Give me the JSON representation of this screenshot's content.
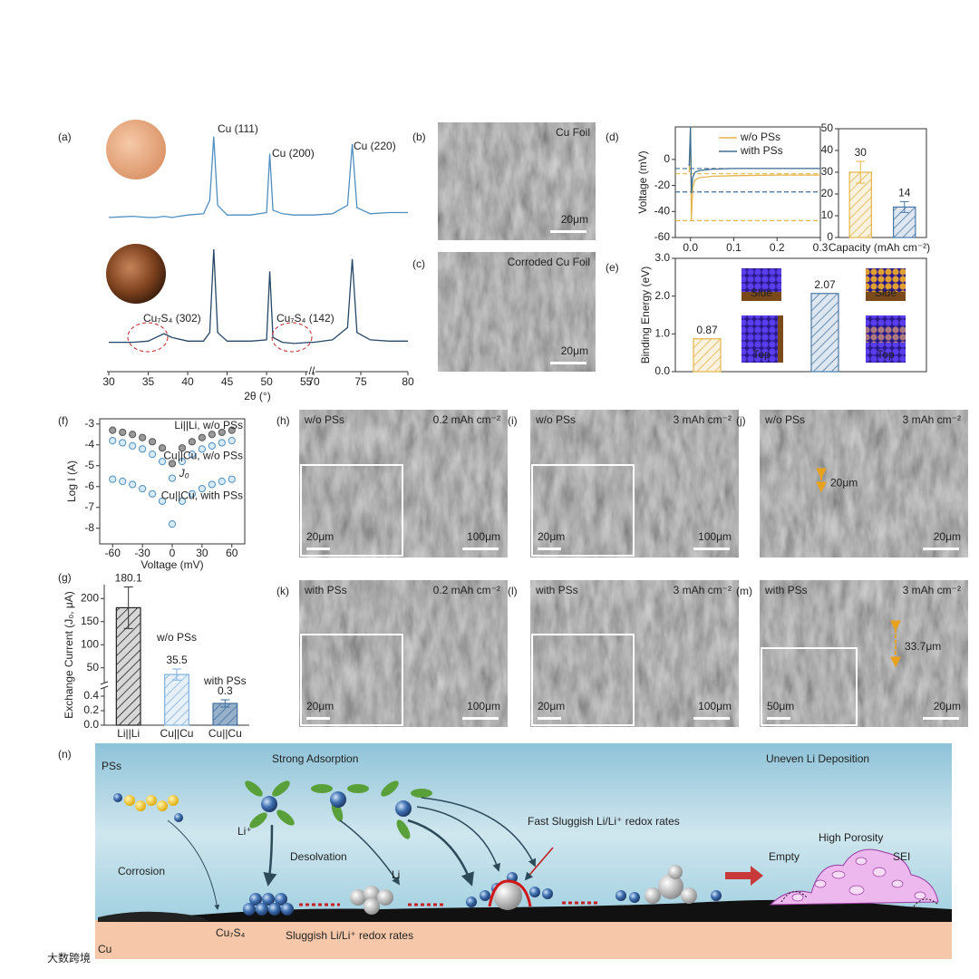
{
  "chart_data": [
    {
      "type": "line",
      "panel": "(a)",
      "xlabel": "2θ (°)",
      "xlim": [
        30,
        80
      ],
      "x_break": [
        55.5,
        70
      ],
      "xticks": [
        30,
        35,
        40,
        45,
        50,
        55,
        70,
        75,
        80
      ],
      "ylim": [
        0,
        100
      ],
      "x": [
        30,
        33,
        35,
        36,
        37,
        38,
        40,
        42,
        42.8,
        43.3,
        43.8,
        45,
        48,
        50,
        50.4,
        50.8,
        52,
        53.5,
        55.5,
        70,
        72,
        73.6,
        74.1,
        74.6,
        76,
        78,
        80
      ],
      "series": [
        {
          "color": "#4f8fc0",
          "values": [
            63,
            63.5,
            63,
            63,
            63.5,
            63,
            64,
            64.5,
            70,
            96,
            68,
            64,
            64,
            65,
            89,
            66,
            64.5,
            64,
            64,
            64,
            64.5,
            68,
            93,
            67,
            64.5,
            65,
            65
          ]
        },
        {
          "color": "#274766",
          "values": [
            12,
            12,
            12.5,
            14,
            15.5,
            14,
            12.5,
            12.5,
            16,
            50,
            16,
            12.5,
            12.5,
            13,
            41,
            14,
            12,
            11.5,
            12,
            12,
            13,
            18,
            46,
            16,
            13,
            12.5,
            12.5
          ]
        }
      ],
      "annotations": [
        "Cu (111)",
        "Cu (200)",
        "Cu (220)",
        "Cu₇S₄ (302)",
        "Cu₇S₄ (142)"
      ]
    },
    {
      "type": "line",
      "panel": "(d)",
      "xlabel": "Capacity (mAh cm⁻²)",
      "ylabel": "Voltage (mV)",
      "xlim": [
        -0.035,
        0.3
      ],
      "xticks": [
        {
          "value": 0,
          "label": "0.0"
        },
        0.1,
        0.2,
        0.3
      ],
      "ylim": [
        -60,
        25
      ],
      "yticks": [
        -60,
        -40,
        -20,
        0
      ],
      "legend": "upper right",
      "x": [
        -0.003,
        0,
        0.002,
        0.005,
        0.01,
        0.02,
        0.05,
        0.1,
        0.2,
        0.3
      ],
      "series": [
        {
          "name": "w/o PSs",
          "color": "#e3b54a",
          "values": [
            -10,
            25,
            -47,
            -22,
            -16,
            -14,
            -13,
            -12.5,
            -12,
            -12
          ]
        },
        {
          "name": "with PSs",
          "color": "#3f6f96",
          "values": [
            -5,
            25,
            -26,
            -14,
            -10,
            -8.5,
            -7.5,
            -7,
            -7,
            -7
          ]
        }
      ],
      "reference_lines": [
        {
          "value": -11,
          "color": "#e3b54a"
        },
        {
          "value": -47,
          "color": "#e3b54a"
        },
        {
          "value": -7,
          "color": "#3f6f96"
        },
        {
          "value": -25,
          "color": "#3f6f96"
        }
      ]
    },
    {
      "type": "bar",
      "categories": [
        null,
        null
      ],
      "values": [
        30,
        14
      ],
      "errors": [
        5,
        2.5
      ],
      "colors": [
        "#e3b54a",
        "#4a78a8"
      ],
      "hatch": true,
      "ylim": [
        0,
        50
      ],
      "yticks": [
        0,
        10,
        20,
        30,
        40,
        50
      ]
    },
    {
      "type": "bar",
      "panel": "(e)",
      "ylabel": "Binding Energy (eV)",
      "categories": [
        null,
        null
      ],
      "values": [
        0.87,
        2.07
      ],
      "colors": [
        "#e3b54a",
        "#4a78a8"
      ],
      "hatch": true,
      "ylim": [
        0,
        3
      ],
      "yticks": [
        {
          "value": 0,
          "label": "0.0"
        },
        {
          "value": 1,
          "label": "1.0"
        },
        {
          "value": 2,
          "label": "2.0"
        },
        {
          "value": 3,
          "label": "3.0"
        }
      ],
      "image_labels": [
        "Side",
        "Top",
        "Side",
        "Top"
      ]
    },
    {
      "type": "scatter",
      "panel": "(f)",
      "xlabel": "Voltage (mV)",
      "ylabel": "Log I (A)",
      "annotation": "J₀",
      "xlim": [
        -73,
        73
      ],
      "xticks": [
        -60,
        -30,
        0,
        30,
        60
      ],
      "ylim": [
        -8.75,
        -2.75
      ],
      "yticks": [
        -8,
        -7,
        -6,
        -5,
        -4,
        -3
      ],
      "x": [
        -60,
        -50,
        -40,
        -30,
        -20,
        -10,
        0,
        10,
        20,
        30,
        40,
        50,
        60
      ],
      "series": [
        {
          "name": "Li||Li, w/o PSs",
          "color": "#555555",
          "values": [
            -3.3,
            -3.4,
            -3.5,
            -3.65,
            -3.85,
            -4.15,
            -4.9,
            -4.15,
            -3.85,
            -3.65,
            -3.5,
            -3.4,
            -3.3
          ]
        },
        {
          "name": "Cu||Cu, w/o PSs",
          "color": "#4f8fc0",
          "values": [
            -3.8,
            -3.9,
            -4.05,
            -4.2,
            -4.45,
            -4.8,
            -5.6,
            -4.8,
            -4.45,
            -4.2,
            -4.05,
            -3.9,
            -3.8
          ]
        },
        {
          "name": "Cu||Cu, with PSs",
          "color": "#4f8fc0",
          "values": [
            -5.65,
            -5.75,
            -5.9,
            -6.1,
            -6.35,
            -6.7,
            -7.8,
            -6.7,
            -6.35,
            -6.1,
            -5.9,
            -5.75,
            -5.65
          ]
        }
      ]
    },
    {
      "type": "bar",
      "panel": "(g)",
      "ylabel": "Exchange Current (J₀, μA)",
      "categories": [
        "Li||Li",
        "Cu||Cu",
        "Cu||Cu"
      ],
      "values": [
        180.1,
        35.5,
        0.3
      ],
      "errors": [
        45,
        12,
        0.05
      ],
      "colors": [
        "#222222",
        "#7fb0dc",
        "#3f6f9f"
      ],
      "hatch": true,
      "ylim": [
        0,
        230
      ],
      "y_break": [
        0.5,
        20
      ],
      "yticks": [
        {
          "value": 0,
          "label": "0.0"
        },
        0.2,
        0.4,
        50,
        100,
        150,
        200
      ],
      "annotations": [
        "w/o PSs",
        "with PSs"
      ]
    }
  ],
  "images": {
    "b": {
      "label": "(b)",
      "caption": "Cu Foil",
      "scale": "20μm"
    },
    "c": {
      "label": "(c)",
      "caption": "Corroded Cu Foil",
      "scale": "20μm"
    },
    "h": {
      "label": "(h)",
      "caption": "w/o PSs",
      "capacity": "0.2 mAh cm⁻²",
      "scale": "100μm",
      "inset_scale": "20μm"
    },
    "i": {
      "label": "(i)",
      "caption": "w/o PSs",
      "capacity": "3 mAh cm⁻²",
      "scale": "100μm",
      "inset_scale": "20μm"
    },
    "j": {
      "label": "(j)",
      "caption": "w/o PSs",
      "capacity": "3 mAh cm⁻²",
      "scale": "20μm",
      "thickness": "20μm"
    },
    "k": {
      "label": "(k)",
      "caption": "with PSs",
      "capacity": "0.2 mAh cm⁻²",
      "scale": "100μm",
      "inset_scale": "20μm"
    },
    "l": {
      "label": "(l)",
      "caption": "with PSs",
      "capacity": "3 mAh cm⁻²",
      "scale": "100μm",
      "inset_scale": "20μm"
    },
    "m": {
      "label": "(m)",
      "caption": "with PSs",
      "capacity": "3 mAh cm⁻²",
      "scale": "20μm",
      "inset_scale": "50μm",
      "thickness": "33.7μm"
    }
  },
  "schematic": {
    "label": "(n)",
    "pss": "PSs",
    "adsorption": "Strong Adsorption",
    "uneven": "Uneven Li Deposition",
    "li_ion": "Li⁺",
    "desolvation": "Desolvation",
    "corrosion": "Corrosion",
    "li": "Li",
    "fast": "Fast Sluggish Li/Li⁺ redox rates",
    "porosity": "High Porosity",
    "empty": "Empty",
    "sei": "SEI",
    "cu7s4": "Cu₇S₄",
    "sluggish": "Sluggish Li/Li⁺ redox rates",
    "cu": "Cu"
  },
  "watermark": "大数跨境"
}
